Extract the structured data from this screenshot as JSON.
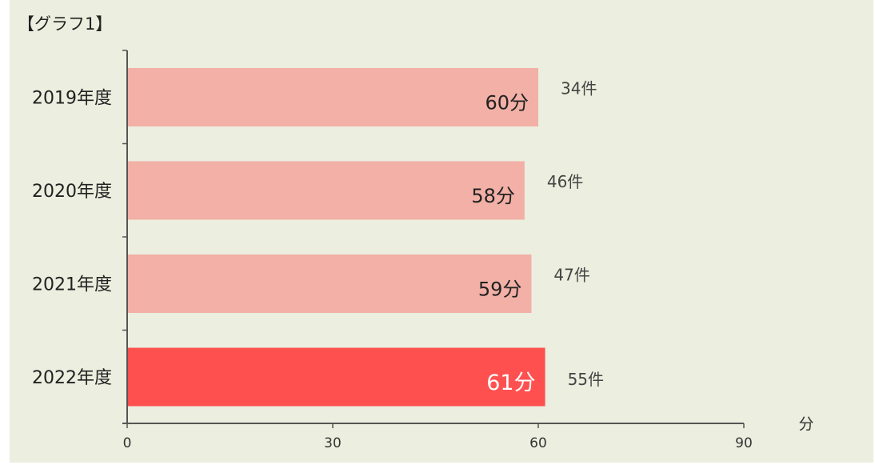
{
  "title": "【グラフ1】",
  "chart_data": {
    "type": "bar",
    "orientation": "horizontal",
    "categories": [
      "2019年度",
      "2020年度",
      "2021年度",
      "2022年度"
    ],
    "values": [
      60,
      58,
      59,
      61
    ],
    "value_labels": [
      "60分",
      "58分",
      "59分",
      "61分"
    ],
    "count_labels": [
      "34件",
      "46件",
      "47件",
      "55件"
    ],
    "x_ticks": [
      "0",
      "30",
      "60",
      "90"
    ],
    "xlim": [
      0,
      90
    ],
    "xlabel": "分",
    "colors": {
      "bar": "#f2b0a6",
      "highlight": "#ff5050",
      "axis": "#555555",
      "background": "#eceedf"
    },
    "highlight_index": 3
  }
}
